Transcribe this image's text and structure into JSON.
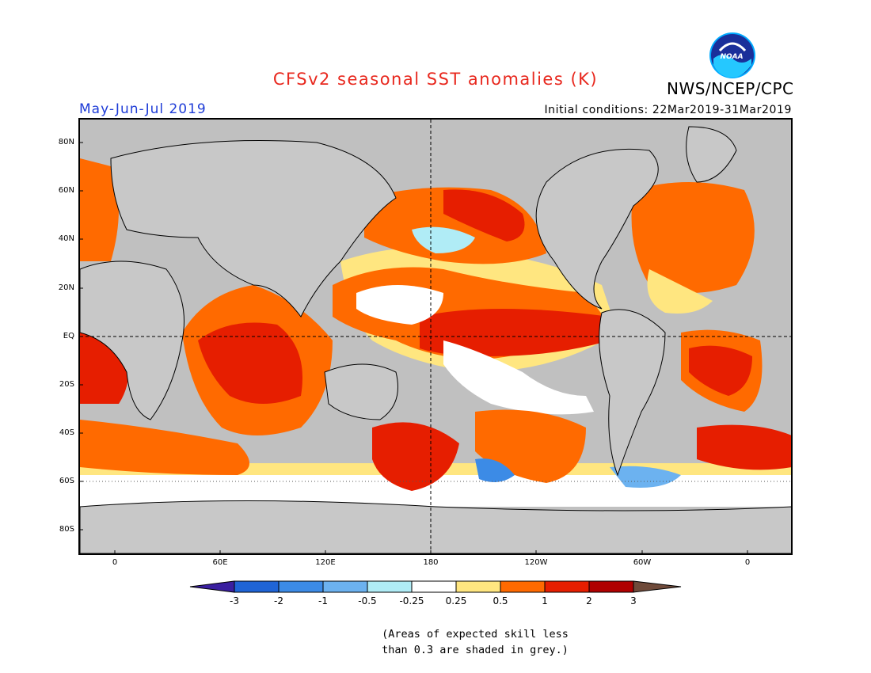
{
  "title": "CFSv2 seasonal SST anomalies (K)",
  "agency": "NWS/NCEP/CPC",
  "logo_text": "NOAA",
  "period": "May-Jun-Jul 2019",
  "initial_conditions": "Initial conditions: 22Mar2019-31Mar2019",
  "lat_labels": [
    "80N",
    "60N",
    "40N",
    "20N",
    "EQ",
    "20S",
    "40S",
    "60S",
    "80S"
  ],
  "lon_labels": [
    "0",
    "60E",
    "120E",
    "180",
    "120W",
    "60W",
    "0"
  ],
  "colorbar": {
    "tick_labels": [
      "-3",
      "-2",
      "-1",
      "-0.5",
      "-0.25",
      "0.25",
      "0.5",
      "1",
      "2",
      "3"
    ],
    "colors": [
      "#3a1fa0",
      "#1f64d6",
      "#3c8be6",
      "#6cb2f0",
      "#b0ecf6",
      "#ffffff",
      "#ffe680",
      "#ff6a00",
      "#e61e00",
      "#b00000",
      "#6f4a3a"
    ]
  },
  "colors": {
    "land": "#c8c8c8",
    "skill_grey": "#c0c0c0",
    "warm_0.25": "#ffe680",
    "warm_0.5": "#ff6a00",
    "warm_1": "#e61e00",
    "warm_2": "#b00000",
    "cool_0.25": "#b0ecf6",
    "cool_0.5": "#6cb2f0",
    "cool_1": "#3c8be6",
    "cool_2": "#1f64d6"
  },
  "note": {
    "line1": "(Areas of expected skill less",
    "line2": "than 0.3 are shaded in grey.)"
  }
}
